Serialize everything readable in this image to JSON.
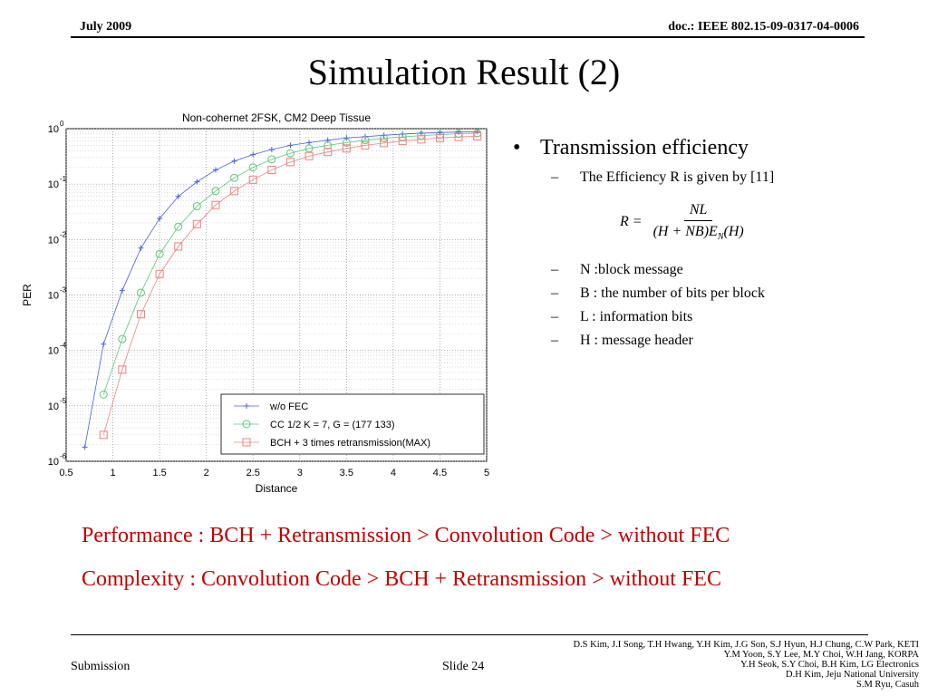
{
  "header": {
    "date": "July 2009",
    "doc_id": "doc.: IEEE 802.15-09-0317-04-0006"
  },
  "title": "Simulation Result (2)",
  "bullets": {
    "main": "Transmission efficiency",
    "efficiency_line": "The Efficiency R is given by [11]",
    "formula": {
      "lhs": "R =",
      "numerator": "NL",
      "denominator": "(H + NB)E",
      "denominator_sub": "N",
      "denominator_tail": "(H)"
    },
    "items": [
      "N :block message",
      "B : the number of bits per block",
      "L : information bits",
      "H : message header"
    ]
  },
  "summary": {
    "performance": "Performance : BCH + Retransmission  >  Convolution Code  >  without FEC",
    "complexity": "Complexity : Convolution Code  > BCH + Retransmission  > without FEC"
  },
  "footer": {
    "left": "Submission",
    "slide": "Slide 24",
    "authors": [
      "D.S Kim, J.I Song, T.H Hwang, Y.H Kim, J.G Son, S.J Hyun, H.J Chung, C.W Park, KETI",
      "Y.M Yoon, S.Y Lee, M.Y Choi, W.H Jang, KORPA",
      "Y.H Seok, S.Y Choi, B.H Kim, LG Electronics",
      "D.H Kim, Jeju National University",
      "S.M Ryu, Casuh"
    ]
  },
  "chart_data": {
    "type": "line",
    "title": "Non-cohernet 2FSK, CM2 Deep Tissue",
    "xlabel": "Distance",
    "ylabel": "PER",
    "xlim": [
      0.5,
      5
    ],
    "ylim_log10": [
      -6,
      0
    ],
    "y_scale": "log",
    "grid": true,
    "legend_position": "bottom-right",
    "x_ticks": [
      "0.5",
      "1",
      "1.5",
      "2",
      "2.5",
      "3",
      "3.5",
      "4",
      "4.5",
      "5"
    ],
    "y_ticks": [
      {
        "base": "10",
        "exp": "0"
      },
      {
        "base": "10",
        "exp": "-1"
      },
      {
        "base": "10",
        "exp": "-2"
      },
      {
        "base": "10",
        "exp": "-3"
      },
      {
        "base": "10",
        "exp": "-4"
      },
      {
        "base": "10",
        "exp": "-5"
      },
      {
        "base": "10",
        "exp": "-6"
      }
    ],
    "series": [
      {
        "name": "w/o FEC",
        "color": "#4a5fdc",
        "marker": "plus",
        "x": [
          0.7,
          0.9,
          1.1,
          1.3,
          1.5,
          1.7,
          1.9,
          2.1,
          2.3,
          2.5,
          2.7,
          2.9,
          3.1,
          3.3,
          3.5,
          3.7,
          3.9,
          4.1,
          4.3,
          4.5,
          4.7,
          4.9
        ],
        "y": [
          1.8e-06,
          0.00013,
          0.0012,
          0.007,
          0.024,
          0.06,
          0.11,
          0.18,
          0.26,
          0.34,
          0.42,
          0.5,
          0.56,
          0.62,
          0.68,
          0.72,
          0.76,
          0.8,
          0.83,
          0.85,
          0.87,
          0.88
        ]
      },
      {
        "name": "CC 1/2 K = 7, G = (177 133)",
        "color": "#5fc77a",
        "marker": "circle",
        "x": [
          0.9,
          1.1,
          1.3,
          1.5,
          1.7,
          1.9,
          2.1,
          2.3,
          2.5,
          2.7,
          2.9,
          3.1,
          3.3,
          3.5,
          3.7,
          3.9,
          4.1,
          4.3,
          4.5,
          4.7,
          4.9
        ],
        "y": [
          1.6e-05,
          0.00016,
          0.0011,
          0.0055,
          0.017,
          0.04,
          0.075,
          0.13,
          0.2,
          0.28,
          0.36,
          0.44,
          0.5,
          0.56,
          0.62,
          0.67,
          0.71,
          0.75,
          0.78,
          0.81,
          0.83
        ]
      },
      {
        "name": "BCH + 3 times retransmission(MAX)",
        "color": "#f08080",
        "marker": "square",
        "x": [
          0.9,
          1.1,
          1.3,
          1.5,
          1.7,
          1.9,
          2.1,
          2.3,
          2.5,
          2.7,
          2.9,
          3.1,
          3.3,
          3.5,
          3.7,
          3.9,
          4.1,
          4.3,
          4.5,
          4.7,
          4.9
        ],
        "y": [
          3e-06,
          4.5e-05,
          0.00045,
          0.0024,
          0.0075,
          0.019,
          0.042,
          0.075,
          0.12,
          0.18,
          0.25,
          0.32,
          0.38,
          0.44,
          0.5,
          0.55,
          0.6,
          0.64,
          0.68,
          0.71,
          0.73
        ]
      }
    ]
  }
}
